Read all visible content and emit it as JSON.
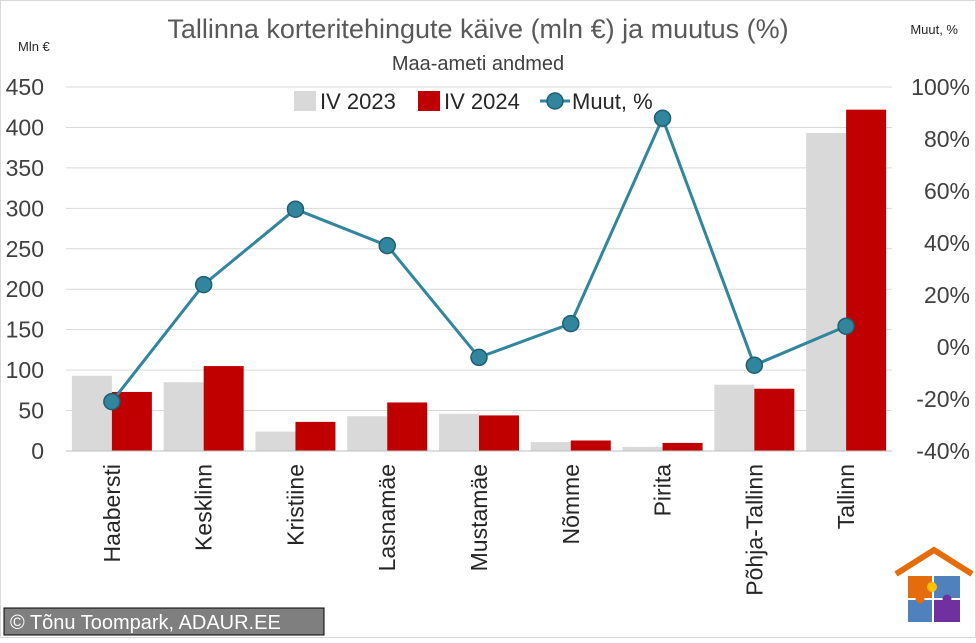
{
  "chart_data": {
    "type": "bar",
    "title": "Tallinna korteritehingute käive (mln €) ja muutus (%)",
    "subtitle": "Maa-ameti andmed",
    "y_left_unit": "Mln €",
    "y_right_unit": "Muut, %",
    "categories": [
      "Haabersti",
      "Kesklinn",
      "Kristiine",
      "Lasnamäe",
      "Mustamäe",
      "Nõmme",
      "Pirita",
      "Põhja-Tallinn",
      "Tallinn"
    ],
    "series": [
      {
        "name": "IV 2023",
        "type": "bar",
        "axis": "left",
        "color": "#d9d9d9",
        "values": [
          93,
          85,
          24,
          43,
          46,
          11,
          5,
          82,
          393
        ]
      },
      {
        "name": "IV 2024",
        "type": "bar",
        "axis": "left",
        "color": "#c00000",
        "values": [
          73,
          105,
          36,
          60,
          44,
          13,
          10,
          77,
          422
        ]
      },
      {
        "name": "Muut, %",
        "type": "line",
        "axis": "right",
        "color": "#31859c",
        "values": [
          -21,
          24,
          53,
          39,
          -4,
          9,
          88,
          -7,
          8
        ]
      }
    ],
    "y_left": {
      "min": 0,
      "max": 450,
      "step": 50,
      "ticks": [
        "0",
        "50",
        "100",
        "150",
        "200",
        "250",
        "300",
        "350",
        "400",
        "450"
      ]
    },
    "y_right": {
      "min": -40,
      "max": 100,
      "step": 20,
      "ticks": [
        "-40%",
        "-20%",
        "0%",
        "20%",
        "40%",
        "60%",
        "80%",
        "100%"
      ]
    },
    "grid": true,
    "legend_position": "top"
  },
  "credit": "© Tõnu Toompark, ADAUR.EE",
  "logo": {
    "name": "adaur-house-puzzle-logo",
    "colors": [
      "#e46c0a",
      "#4f81bd",
      "#7030a0",
      "#ffc000"
    ]
  }
}
